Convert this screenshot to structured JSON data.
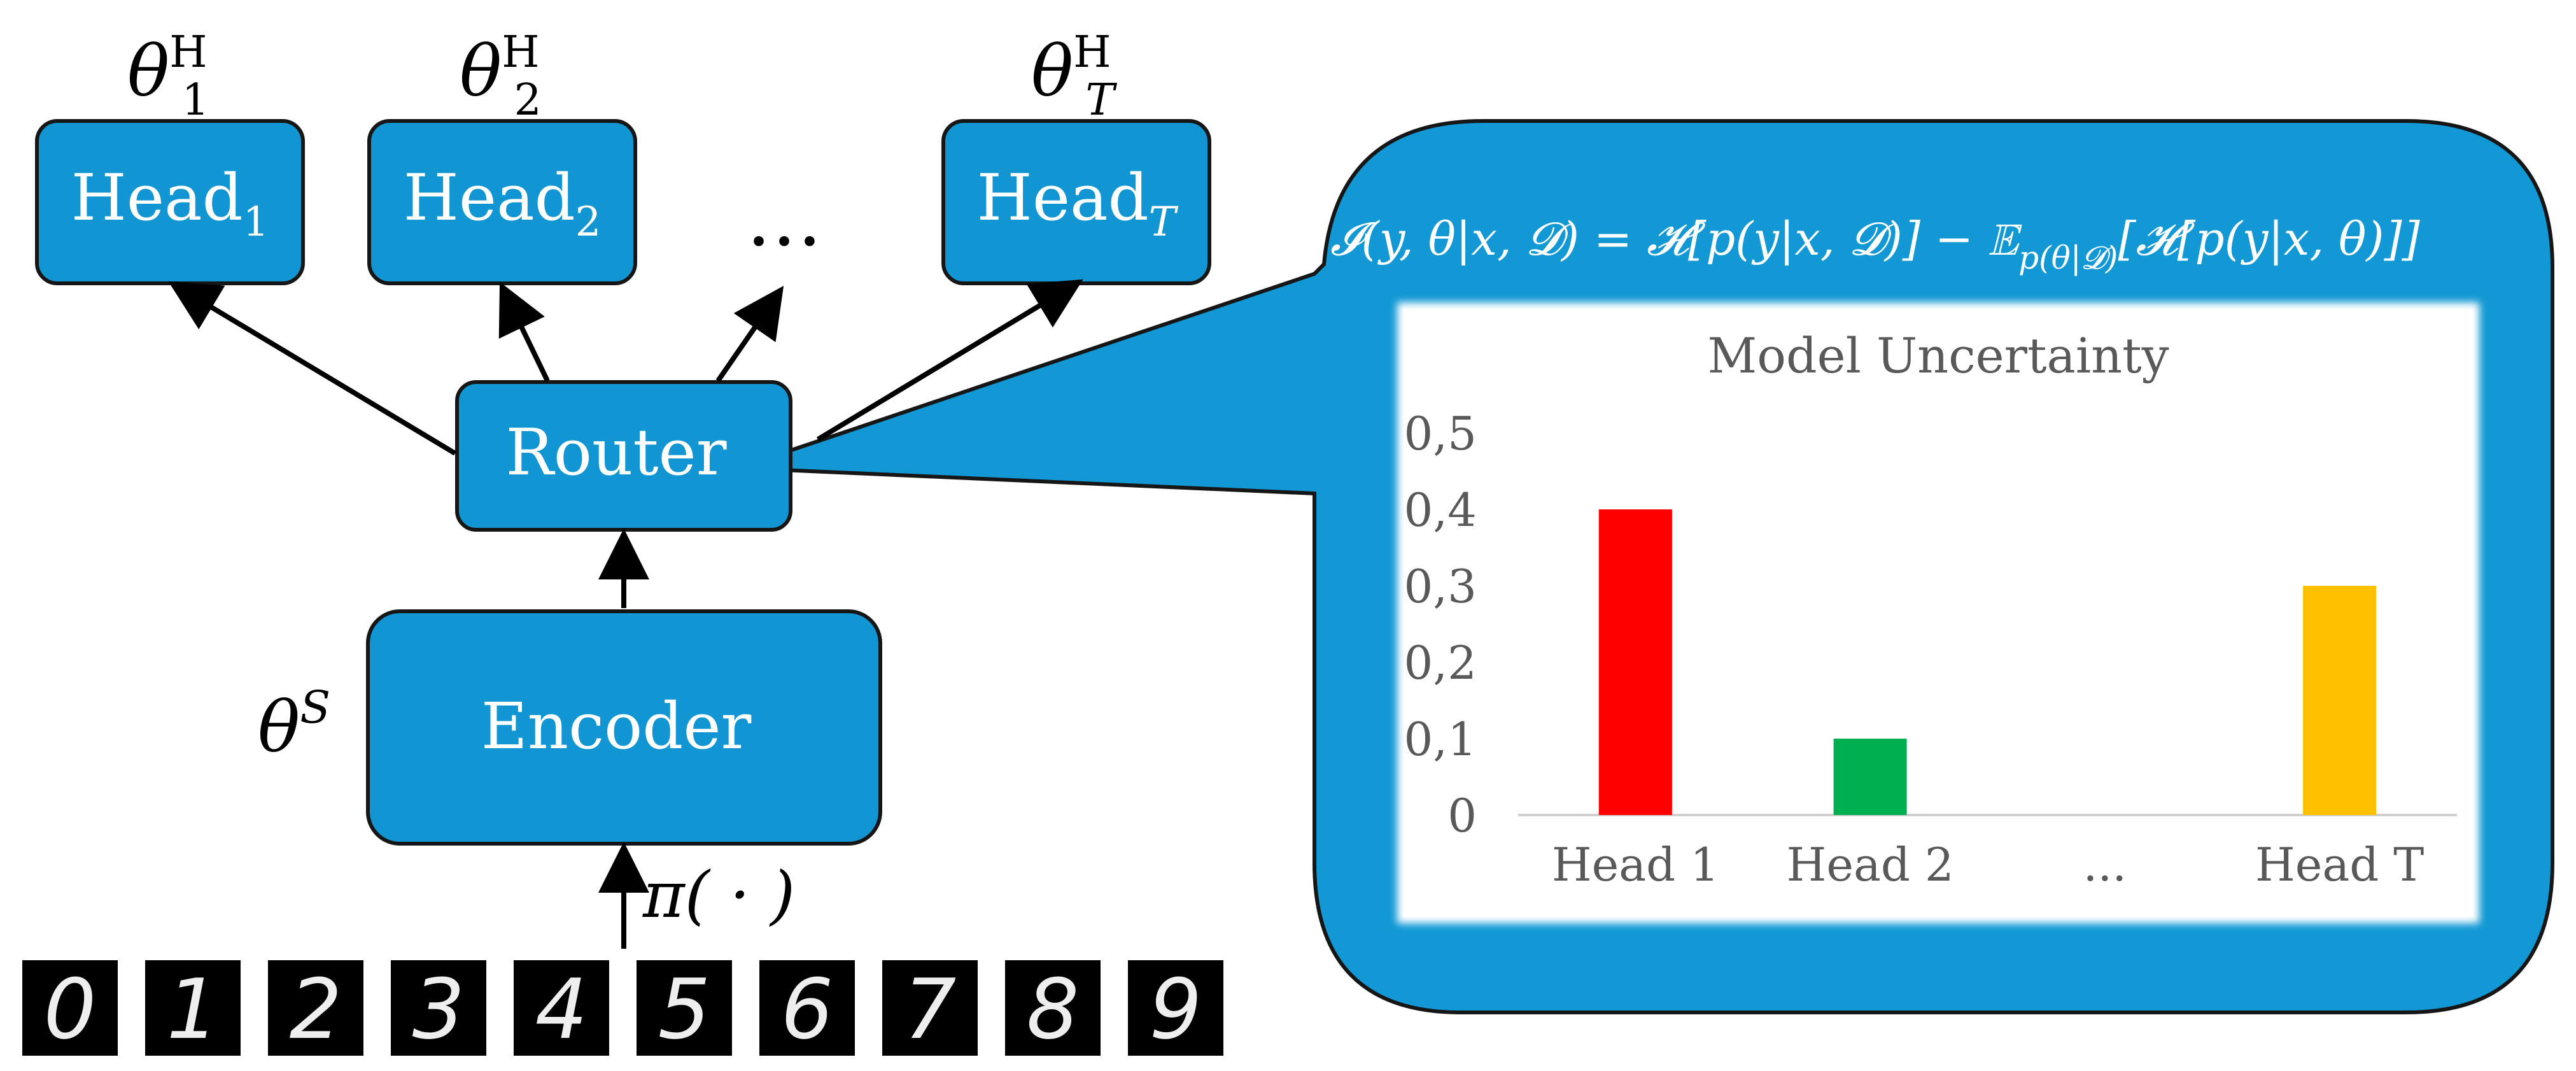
{
  "theme": {
    "box_fill": "#1196D3",
    "box_stroke": "#161616",
    "bubble_fill": "#1298D5",
    "arrow_color": "#000000",
    "chart_bg": "#FFFFFF"
  },
  "heads": [
    {
      "label": "Head",
      "sub": "1",
      "param": "θ",
      "param_sub": "1",
      "param_sup": "H"
    },
    {
      "label": "Head",
      "sub": "2",
      "param": "θ",
      "param_sub": "2",
      "param_sup": "H"
    },
    {
      "label": "Head",
      "sub": "T",
      "param": "θ",
      "param_sub": "T",
      "param_sup": "H"
    }
  ],
  "ellipsis": "…",
  "router": {
    "label": "Router"
  },
  "encoder": {
    "label": "Encoder",
    "param": "θ",
    "param_sup": "S"
  },
  "policy": {
    "label": "π( · )"
  },
  "digits": [
    "0",
    "1",
    "2",
    "3",
    "4",
    "5",
    "6",
    "7",
    "8",
    "9"
  ],
  "formula": {
    "lhs": "𝓘(y, θ|x, 𝓓) = 𝓗[p(y|x, 𝓓)] − 𝔼",
    "sub": "p(θ|𝓓)",
    "rhs": "[𝓗[p(y|x, θ)]]"
  },
  "chart_data": {
    "type": "bar",
    "title": "Model Uncertainty",
    "categories": [
      "Head 1",
      "Head 2",
      "...",
      "Head T"
    ],
    "values": [
      0.4,
      0.1,
      null,
      0.3
    ],
    "bar_colors": [
      "#FF0000",
      "#00B050",
      "#FFFFFF",
      "#FFC000"
    ],
    "yticks": [
      "0",
      "0,1",
      "0,2",
      "0,3",
      "0,4",
      "0,5"
    ],
    "ylim": [
      0,
      0.5
    ],
    "grid": false
  }
}
